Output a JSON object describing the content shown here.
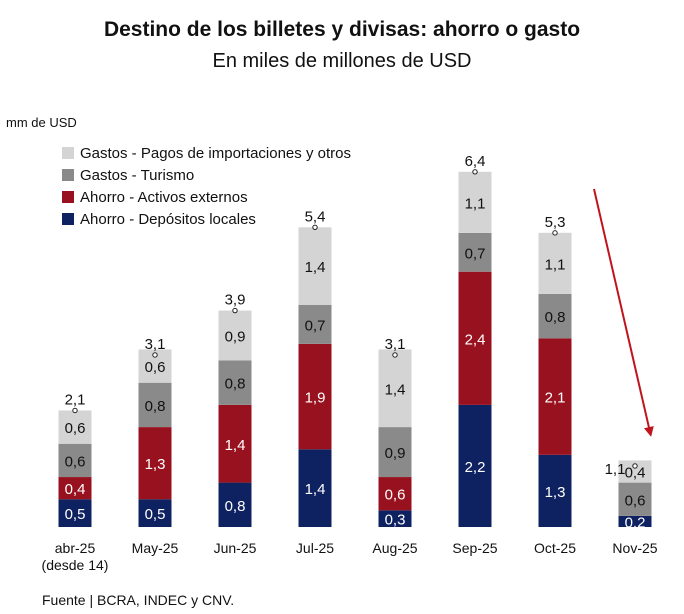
{
  "title": "Destino de los billetes y divisas: ahorro o gasto",
  "subtitle": "En miles de millones de USD",
  "unit_label": "mm de USD",
  "source": "Fuente | BCRA, INDEC y CNV.",
  "colors": {
    "importaciones": "#d4d4d4",
    "turismo": "#8a8a8a",
    "activos_externos": "#98111e",
    "depositos_locales": "#0e2160",
    "arrow": "#c0141c"
  },
  "chart_data": {
    "type": "bar",
    "stacked": true,
    "categories": [
      "abr-25\n(desde 14)",
      "May-25",
      "Jun-25",
      "Jul-25",
      "Aug-25",
      "Sep-25",
      "Oct-25",
      "Nov-25"
    ],
    "series": [
      {
        "name": "Ahorro - Depósitos locales",
        "key": "depositos_locales",
        "values": [
          0.5,
          0.5,
          0.8,
          1.4,
          0.3,
          2.2,
          1.3,
          0.2
        ],
        "labels": [
          "0,5",
          "0,5",
          "0,8",
          "1,4",
          "0,3",
          "2,2",
          "1,3",
          "0,2"
        ]
      },
      {
        "name": "Ahorro - Activos externos",
        "key": "activos_externos",
        "values": [
          0.4,
          1.3,
          1.4,
          1.9,
          0.6,
          2.4,
          2.1,
          0
        ],
        "labels": [
          "0,4",
          "1,3",
          "1,4",
          "1,9",
          "0,6",
          "2,4",
          "2,1",
          ""
        ]
      },
      {
        "name": "Gastos - Turismo",
        "key": "turismo",
        "values": [
          0.6,
          0.8,
          0.8,
          0.7,
          0.9,
          0.7,
          0.8,
          0.6
        ],
        "labels": [
          "0,6",
          "0,8",
          "0,8",
          "0,7",
          "0,9",
          "0,7",
          "0,8",
          "0,6"
        ]
      },
      {
        "name": "Gastos - Pagos de importaciones y otros",
        "key": "importaciones",
        "values": [
          0.6,
          0.6,
          0.9,
          1.4,
          1.4,
          1.1,
          1.1,
          0.4
        ],
        "labels": [
          "0,6",
          "0,6",
          "0,9",
          "1,4",
          "1,4",
          "1,1",
          "1,1",
          "0,4"
        ]
      }
    ],
    "totals": [
      2.1,
      3.1,
      3.9,
      5.4,
      3.1,
      6.4,
      5.3,
      1.1
    ],
    "total_labels": [
      "2,1",
      "3,1",
      "3,9",
      "5,4",
      "3,1",
      "6,4",
      "5,3",
      "1,1"
    ],
    "legend": {
      "position": "top-left",
      "order": [
        "importaciones",
        "turismo",
        "activos_externos",
        "depositos_locales"
      ]
    },
    "ylim": [
      0,
      7
    ],
    "grid": false,
    "annotations": [
      "trend-arrow-down"
    ]
  }
}
